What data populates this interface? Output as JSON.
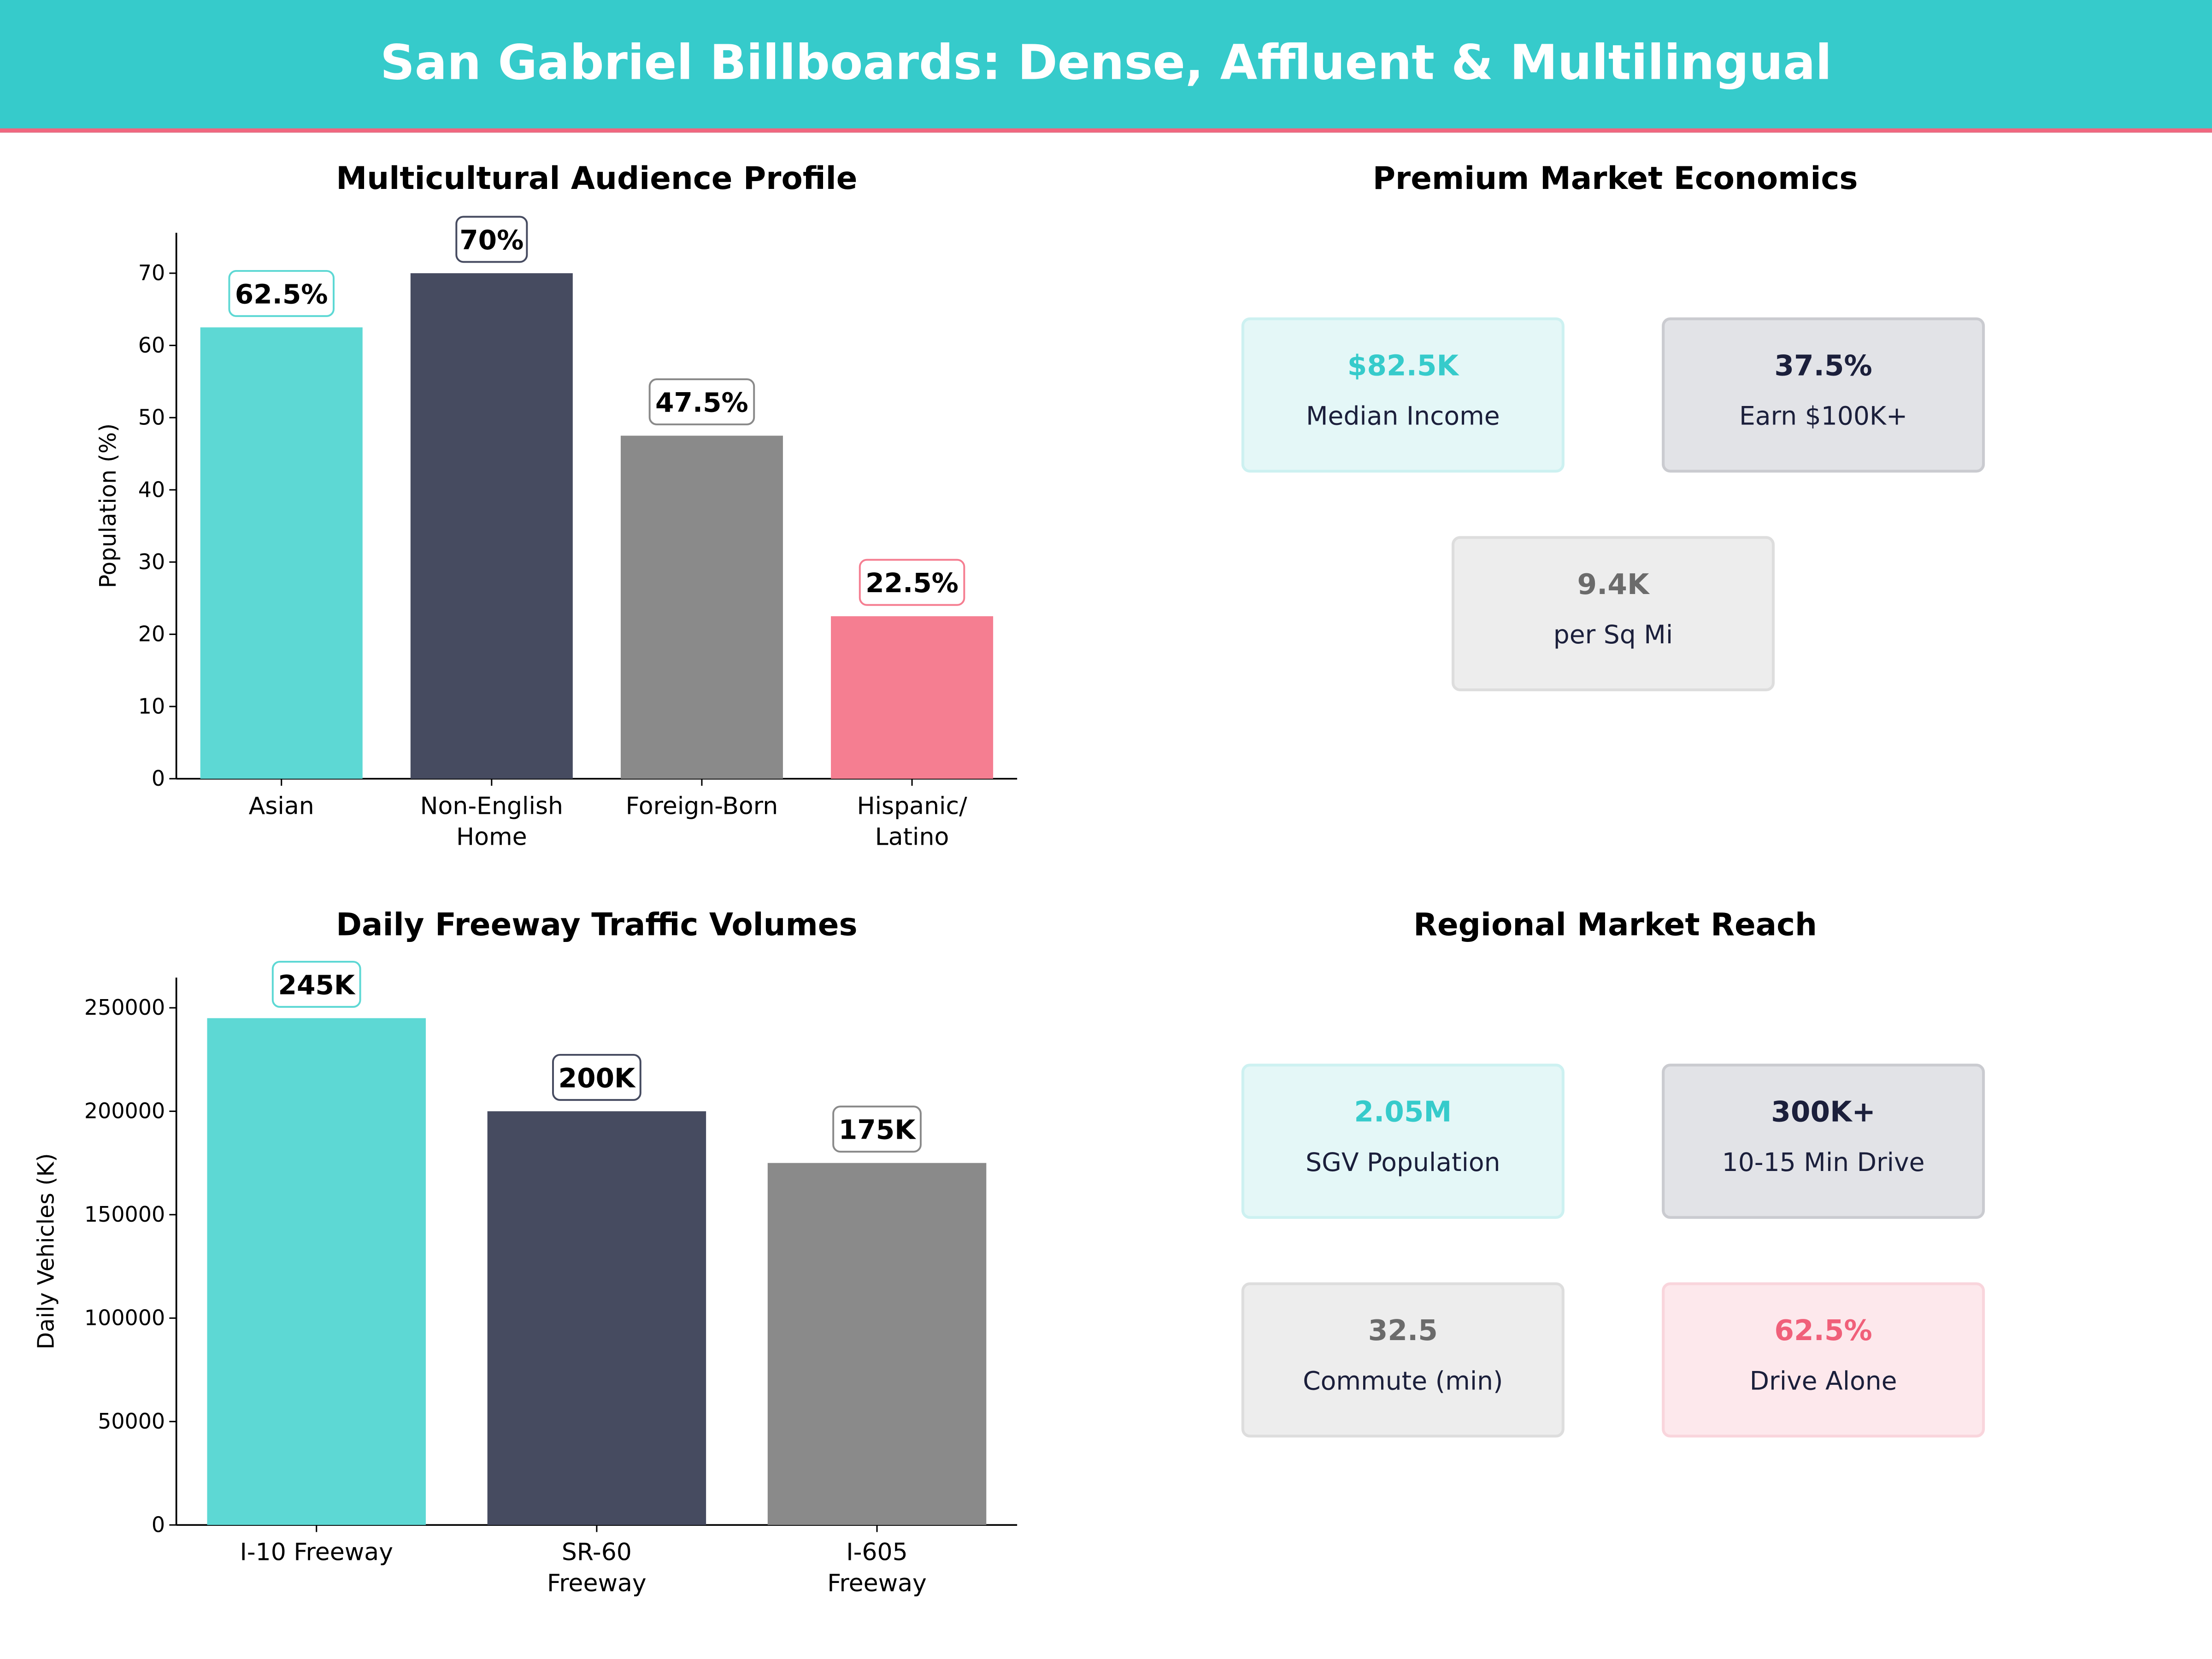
{
  "header": {
    "title": "San Gabriel Billboards: Dense, Affluent & Multilingual",
    "bg_color": "#36CBCB",
    "accent_color": "#F0677F"
  },
  "chart_data": [
    {
      "type": "bar",
      "title": "Multicultural Audience Profile",
      "ylabel": "Population (%)",
      "xlabel": "",
      "categories": [
        "Asian",
        "Non-English\nHome",
        "Foreign-Born",
        "Hispanic/\nLatino"
      ],
      "values": [
        62.5,
        70,
        47.5,
        22.5
      ],
      "data_labels": [
        "62.5%",
        "70%",
        "47.5%",
        "22.5%"
      ],
      "colors": [
        "#5DD8D4",
        "#464B60",
        "#8A8A8A",
        "#F57E91"
      ],
      "ylim": [
        0,
        75.6
      ],
      "yticks": [
        0,
        10,
        20,
        30,
        40,
        50,
        60,
        70
      ],
      "grid": false
    },
    {
      "type": "bar",
      "title": "Daily Freeway Traffic Volumes",
      "ylabel": "Daily Vehicles (K)",
      "xlabel": "",
      "categories": [
        "I-10 Freeway",
        "SR-60\nFreeway",
        "I-605\nFreeway"
      ],
      "values": [
        245000,
        200000,
        175000
      ],
      "data_labels": [
        "245K",
        "200K",
        "175K"
      ],
      "colors": [
        "#5DD8D4",
        "#464B60",
        "#8A8A8A"
      ],
      "ylim": [
        0,
        264600
      ],
      "yticks": [
        0,
        50000,
        100000,
        150000,
        200000,
        250000
      ],
      "grid": false
    }
  ],
  "economics": {
    "title": "Premium Market Economics",
    "cards": [
      {
        "value": "$82.5K",
        "label": "Median Income",
        "style": "teal"
      },
      {
        "value": "37.5%",
        "label": "Earn $100K+",
        "style": "dark"
      },
      {
        "value": "9.4K",
        "label": "per Sq Mi",
        "style": "gray"
      }
    ]
  },
  "reach": {
    "title": "Regional Market Reach",
    "cards": [
      {
        "value": "2.05M",
        "label": "SGV Population",
        "style": "teal"
      },
      {
        "value": "300K+",
        "label": "10-15 Min Drive",
        "style": "dark"
      },
      {
        "value": "32.5",
        "label": "Commute (min)",
        "style": "gray"
      },
      {
        "value": "62.5%",
        "label": "Drive Alone",
        "style": "pink"
      }
    ]
  }
}
